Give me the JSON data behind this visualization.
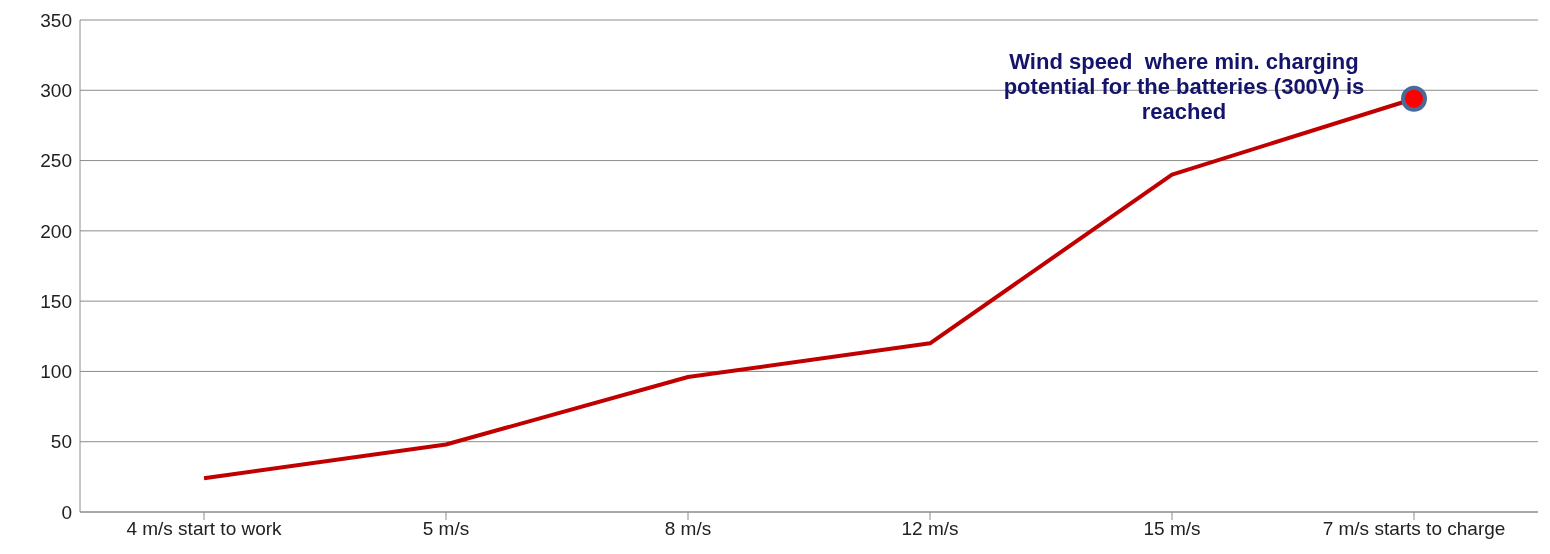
{
  "chart_data": {
    "type": "line",
    "categories": [
      "4 m/s start to work",
      "5 m/s",
      "8 m/s",
      "12 m/s",
      "15 m/s",
      "7 m/s starts to charge"
    ],
    "series": [
      {
        "color": "#c00000",
        "values": [
          24,
          48,
          96,
          120,
          240,
          294
        ]
      }
    ],
    "ylim": [
      0,
      350
    ],
    "yticks": [
      0,
      50,
      100,
      150,
      200,
      250,
      300,
      350
    ],
    "grid": "y",
    "marker": "none",
    "line_style": "solid",
    "annotations": [
      {
        "text": "Wind speed  where min. charging potential for the batteries (300V) is reached",
        "x": "7 m/s starts to charge",
        "y": 294
      }
    ]
  }
}
